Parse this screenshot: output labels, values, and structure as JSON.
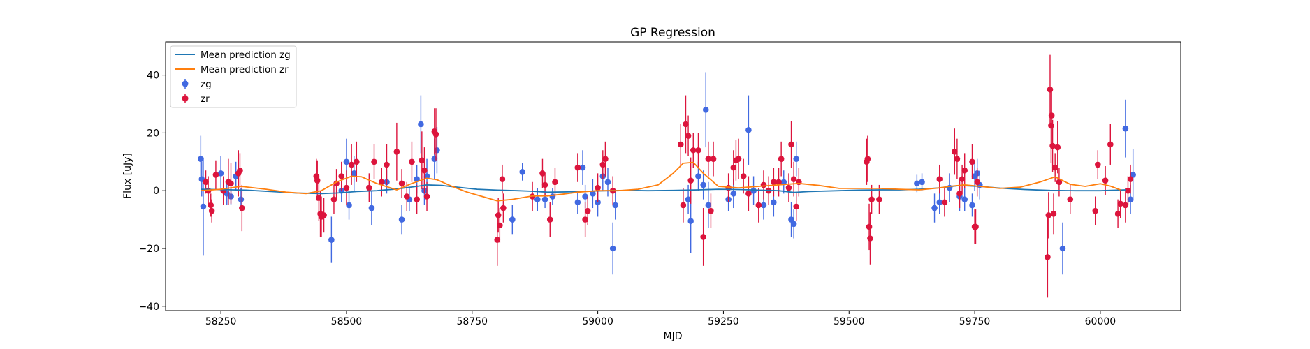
{
  "chart_data": {
    "type": "scatter",
    "title": "GP Regression",
    "xlabel": "MJD",
    "ylabel": "Flux [uJy]",
    "xlim": [
      58140,
      60160
    ],
    "ylim": [
      -41.5,
      51.5
    ],
    "xticks": [
      58250,
      58500,
      58750,
      59000,
      59250,
      59500,
      59750,
      60000
    ],
    "yticks": [
      -40,
      -20,
      0,
      20,
      40
    ],
    "legend": {
      "placement": "top-left",
      "entries": [
        {
          "label": "Mean prediction zg",
          "kind": "line",
          "color": "#1f77b4"
        },
        {
          "label": "Mean prediction zr",
          "kind": "line",
          "color": "#ff7f0e"
        },
        {
          "label": "zg",
          "kind": "errorbar",
          "color": "#4169e1"
        },
        {
          "label": "zr",
          "kind": "errorbar",
          "color": "#dc143c"
        }
      ]
    },
    "series": [
      {
        "name": "Mean prediction zg",
        "kind": "line",
        "color": "#1f77b4",
        "x": [
          58210,
          58300,
          58350,
          58400,
          58450,
          58480,
          58520,
          58560,
          58600,
          58640,
          58660,
          58690,
          58720,
          58760,
          58800,
          58840,
          58870,
          58900,
          58940,
          58980,
          59020,
          59060,
          59100,
          59150,
          59200,
          59240,
          59280,
          59320,
          59360,
          59390,
          59420,
          59480,
          59520,
          59560,
          59600,
          59640,
          59680,
          59720,
          59760,
          59800,
          59850,
          59900,
          59950,
          60000,
          60050
        ],
        "y": [
          0.5,
          0.2,
          -0.3,
          -0.8,
          -1.0,
          -0.8,
          -0.3,
          0,
          0.6,
          1.5,
          2.0,
          1.8,
          1.2,
          0.5,
          0.2,
          0,
          -0.2,
          -0.5,
          -0.4,
          -0.2,
          0,
          0.1,
          0,
          0.1,
          0.3,
          0.5,
          0.4,
          0.2,
          0,
          -0.6,
          -0.3,
          0,
          0.2,
          0.3,
          0.3,
          0.5,
          1.0,
          1.8,
          1.5,
          0.9,
          0.4,
          0.1,
          0,
          0,
          0.3
        ]
      },
      {
        "name": "Mean prediction zr",
        "kind": "line",
        "color": "#ff7f0e",
        "x": [
          58210,
          58250,
          58290,
          58340,
          58380,
          58420,
          58450,
          58480,
          58510,
          58530,
          58560,
          58600,
          58630,
          58660,
          58680,
          58710,
          58740,
          58770,
          58800,
          58830,
          58870,
          58900,
          58930,
          58960,
          59000,
          59040,
          59080,
          59120,
          59150,
          59170,
          59190,
          59210,
          59240,
          59280,
          59320,
          59360,
          59400,
          59440,
          59480,
          59530,
          59560,
          59600,
          59640,
          59680,
          59700,
          59730,
          59760,
          59800,
          59840,
          59880,
          59910,
          59940,
          59970,
          60000,
          60020,
          60040
        ],
        "y": [
          0,
          0.5,
          1.5,
          0.5,
          -0.5,
          -1.0,
          0,
          3,
          5,
          4.8,
          2.5,
          0.3,
          2.5,
          4.3,
          3.8,
          1.5,
          -0.5,
          -2,
          -3.5,
          -3,
          -1.8,
          -1.8,
          -1.2,
          -0.5,
          0,
          0,
          0.5,
          2,
          6,
          9.5,
          9.8,
          6,
          1.5,
          1.0,
          1.5,
          2,
          2.5,
          1.8,
          0.8,
          0.8,
          0.8,
          0.5,
          0.3,
          1,
          1.5,
          2,
          1.5,
          0.8,
          1.2,
          3,
          4.8,
          2.2,
          1.5,
          2.4,
          1.6,
          0.3
        ]
      },
      {
        "name": "zg",
        "kind": "errorbar",
        "color": "#4169e1",
        "points": [
          [
            58210,
            11,
            8
          ],
          [
            58212,
            4,
            6
          ],
          [
            58215,
            -5.5,
            17
          ],
          [
            58250,
            6,
            6
          ],
          [
            58262,
            -1,
            4
          ],
          [
            58270,
            -2,
            3
          ],
          [
            58280,
            5,
            5
          ],
          [
            58290,
            -3,
            4
          ],
          [
            58470,
            -17,
            8
          ],
          [
            58490,
            0,
            4
          ],
          [
            58500,
            10,
            8
          ],
          [
            58505,
            -5,
            5
          ],
          [
            58515,
            6,
            6
          ],
          [
            58550,
            -6,
            6
          ],
          [
            58580,
            3,
            4
          ],
          [
            58610,
            -10,
            5
          ],
          [
            58625,
            -3,
            4
          ],
          [
            58640,
            4,
            5
          ],
          [
            58648,
            23,
            10
          ],
          [
            58655,
            0,
            5
          ],
          [
            58660,
            5,
            6
          ],
          [
            58675,
            11,
            7
          ],
          [
            58680,
            14,
            8
          ],
          [
            58830,
            -10,
            5
          ],
          [
            58850,
            6.5,
            3
          ],
          [
            58880,
            -3,
            4
          ],
          [
            58895,
            -3,
            3
          ],
          [
            58910,
            -2,
            3
          ],
          [
            58960,
            -4,
            4
          ],
          [
            58970,
            8,
            6
          ],
          [
            58975,
            -2,
            4
          ],
          [
            58990,
            -1,
            5
          ],
          [
            59000,
            -4,
            5
          ],
          [
            59010,
            5,
            5
          ],
          [
            59020,
            3,
            5
          ],
          [
            59030,
            -20,
            9
          ],
          [
            59035,
            -5,
            5
          ],
          [
            59180,
            -3,
            5
          ],
          [
            59185,
            -10.5,
            11
          ],
          [
            59200,
            5,
            5
          ],
          [
            59210,
            2,
            5
          ],
          [
            59215,
            28,
            13
          ],
          [
            59220,
            -5,
            8
          ],
          [
            59260,
            -3,
            4
          ],
          [
            59270,
            -1,
            5
          ],
          [
            59300,
            21,
            12
          ],
          [
            59310,
            0,
            5
          ],
          [
            59330,
            -5,
            5
          ],
          [
            59350,
            -4,
            5
          ],
          [
            59370,
            3,
            4
          ],
          [
            59385,
            -10,
            6
          ],
          [
            59390,
            -11.5,
            5
          ],
          [
            59395,
            11,
            6
          ],
          [
            59635,
            2.5,
            3
          ],
          [
            59645,
            3,
            3
          ],
          [
            59670,
            -6,
            5
          ],
          [
            59680,
            -4,
            4
          ],
          [
            59700,
            1,
            5
          ],
          [
            59720,
            -2,
            5
          ],
          [
            59730,
            -3,
            4
          ],
          [
            59745,
            -5,
            4
          ],
          [
            59750,
            5,
            5
          ],
          [
            59755,
            6,
            5
          ],
          [
            59760,
            2,
            5
          ],
          [
            59925,
            -20,
            9
          ],
          [
            60050,
            21.5,
            10
          ],
          [
            60060,
            -3,
            5
          ],
          [
            60065,
            5.5,
            9
          ]
        ]
      },
      {
        "name": "zr",
        "kind": "errorbar",
        "color": "#dc143c",
        "points": [
          [
            58220,
            3,
            4
          ],
          [
            58225,
            0,
            5
          ],
          [
            58230,
            -5,
            4
          ],
          [
            58232,
            -7,
            4
          ],
          [
            58240,
            5.5,
            5
          ],
          [
            58255,
            0,
            5
          ],
          [
            58265,
            3,
            8
          ],
          [
            58270,
            2.5,
            7
          ],
          [
            58285,
            6,
            8
          ],
          [
            58288,
            7,
            6
          ],
          [
            58292,
            -6,
            8
          ],
          [
            58440,
            5,
            6
          ],
          [
            58442,
            3.5,
            7
          ],
          [
            58445,
            -2.5,
            8
          ],
          [
            58448,
            -8,
            8
          ],
          [
            58450,
            -9,
            7
          ],
          [
            58455,
            -8.5,
            6
          ],
          [
            58475,
            -3,
            5
          ],
          [
            58480,
            2.5,
            5
          ],
          [
            58490,
            5,
            5
          ],
          [
            58500,
            1,
            6
          ],
          [
            58510,
            9,
            7
          ],
          [
            58520,
            10,
            7
          ],
          [
            58545,
            1,
            5
          ],
          [
            58555,
            10,
            6
          ],
          [
            58570,
            3,
            5
          ],
          [
            58580,
            9,
            7
          ],
          [
            58600,
            13.5,
            10
          ],
          [
            58610,
            2.5,
            5
          ],
          [
            58620,
            -2,
            5
          ],
          [
            58630,
            10,
            7
          ],
          [
            58640,
            -3,
            5
          ],
          [
            58650,
            10.5,
            10
          ],
          [
            58655,
            7,
            8
          ],
          [
            58660,
            -2,
            5
          ],
          [
            58675,
            20.5,
            8
          ],
          [
            58678,
            19.5,
            9
          ],
          [
            58800,
            -17,
            9
          ],
          [
            58802,
            -8.5,
            6
          ],
          [
            58805,
            -12,
            6
          ],
          [
            58810,
            4,
            5
          ],
          [
            58812,
            -6,
            5
          ],
          [
            58870,
            -2,
            5
          ],
          [
            58890,
            6,
            5
          ],
          [
            58895,
            2,
            4
          ],
          [
            58905,
            -10,
            6
          ],
          [
            58915,
            3,
            5
          ],
          [
            58960,
            8,
            5
          ],
          [
            58975,
            -10,
            6
          ],
          [
            58980,
            -7,
            5
          ],
          [
            59000,
            1,
            5
          ],
          [
            59010,
            9,
            5
          ],
          [
            59015,
            11,
            6
          ],
          [
            59030,
            0,
            5
          ],
          [
            59165,
            16,
            7
          ],
          [
            59170,
            -5,
            6
          ],
          [
            59175,
            23,
            10
          ],
          [
            59180,
            19,
            7
          ],
          [
            59185,
            3.5,
            8
          ],
          [
            59190,
            14,
            6
          ],
          [
            59200,
            14,
            6
          ],
          [
            59210,
            -16,
            10
          ],
          [
            59220,
            11,
            6
          ],
          [
            59225,
            -7,
            6
          ],
          [
            59230,
            11,
            6
          ],
          [
            59260,
            1,
            5
          ],
          [
            59270,
            8,
            6
          ],
          [
            59275,
            10.5,
            7
          ],
          [
            59280,
            11,
            7
          ],
          [
            59290,
            5,
            6
          ],
          [
            59300,
            -1,
            6
          ],
          [
            59320,
            -5,
            6
          ],
          [
            59330,
            2,
            5
          ],
          [
            59340,
            0,
            5
          ],
          [
            59350,
            3,
            5
          ],
          [
            59360,
            3,
            5
          ],
          [
            59365,
            11,
            6
          ],
          [
            59380,
            1,
            5
          ],
          [
            59385,
            16,
            8
          ],
          [
            59390,
            4,
            6
          ],
          [
            59395,
            -5.5,
            5
          ],
          [
            59400,
            3,
            5
          ],
          [
            59535,
            10,
            8
          ],
          [
            59537,
            11,
            8
          ],
          [
            59540,
            -12.5,
            8
          ],
          [
            59542,
            -16.5,
            9
          ],
          [
            59545,
            -3,
            5
          ],
          [
            59560,
            -3,
            5
          ],
          [
            59680,
            4,
            5
          ],
          [
            59690,
            -4,
            5
          ],
          [
            59710,
            13.5,
            8
          ],
          [
            59715,
            11,
            7
          ],
          [
            59720,
            -1,
            5
          ],
          [
            59725,
            4,
            5
          ],
          [
            59730,
            7,
            6
          ],
          [
            59745,
            10,
            6
          ],
          [
            59750,
            -12.5,
            6
          ],
          [
            59752,
            -12.5,
            6
          ],
          [
            59755,
            3,
            5
          ],
          [
            59895,
            -23,
            14
          ],
          [
            59897,
            -8.5,
            8
          ],
          [
            59900,
            35,
            12
          ],
          [
            59902,
            22.5,
            13
          ],
          [
            59903,
            26,
            10
          ],
          [
            59905,
            15.5,
            9
          ],
          [
            59907,
            -8,
            7
          ],
          [
            59910,
            8,
            5
          ],
          [
            59915,
            15,
            9
          ],
          [
            59918,
            3,
            5
          ],
          [
            59940,
            -3,
            5
          ],
          [
            59990,
            -7,
            5
          ],
          [
            59995,
            9,
            5
          ],
          [
            60010,
            3.5,
            5
          ],
          [
            60020,
            16,
            7
          ],
          [
            60035,
            -8,
            5
          ],
          [
            60040,
            -4.5,
            5
          ],
          [
            60050,
            -5,
            6
          ],
          [
            60055,
            0,
            5
          ],
          [
            60060,
            4,
            5
          ]
        ]
      }
    ]
  }
}
